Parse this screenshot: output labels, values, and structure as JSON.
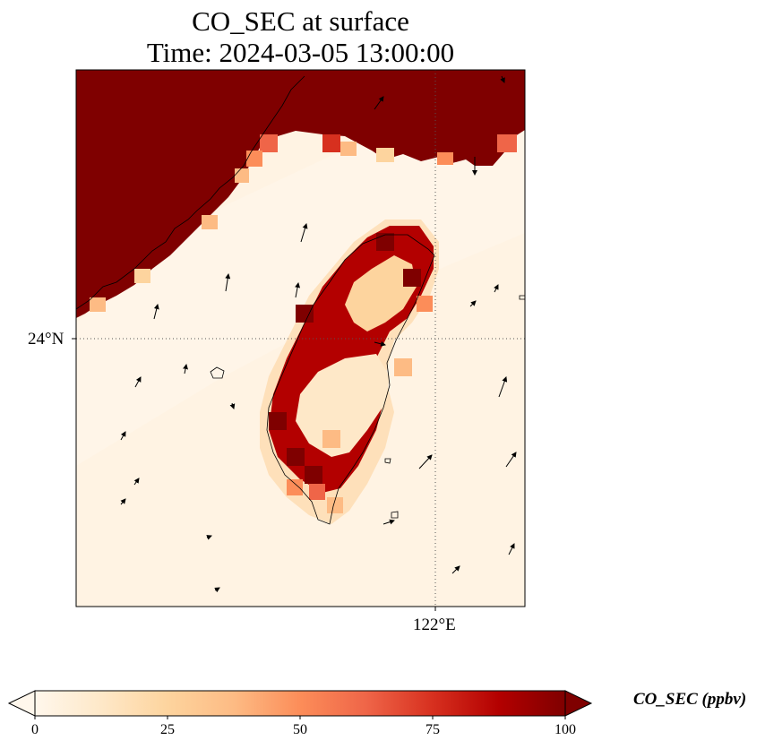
{
  "title": {
    "line1": "CO_SEC at surface",
    "line2": "Time: 2024-03-05 13:00:00"
  },
  "axes": {
    "lat_tick_label": "24°N",
    "lon_tick_label": "122°E"
  },
  "colorbar": {
    "label": "CO_SEC (ppbv)",
    "ticks": [
      "0",
      "25",
      "50",
      "75",
      "100"
    ],
    "min": 0,
    "max": 100,
    "colormap": "OrRd",
    "colors": [
      "#fff7ec",
      "#fee8c8",
      "#fdd49e",
      "#fdbb84",
      "#fc8d59",
      "#ef6548",
      "#d7301f",
      "#b30000",
      "#7f0000"
    ],
    "extend": "both"
  },
  "map": {
    "region": "Taiwan and Taiwan Strait",
    "gridlines": "dotted",
    "wind_vectors": true,
    "ocean_color": "#fff2e0",
    "mainland_color": "#7f0000"
  }
}
